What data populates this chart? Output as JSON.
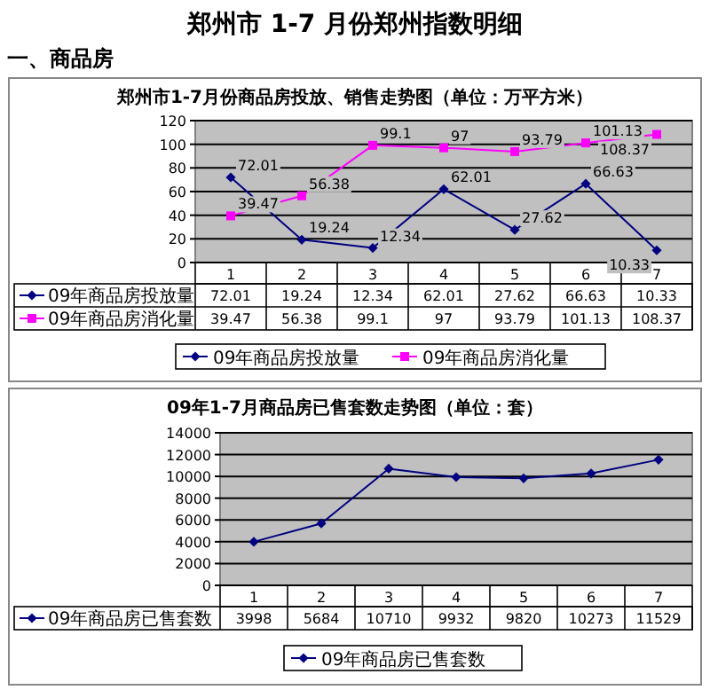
{
  "chart_data": [
    {
      "type": "line",
      "title": "郑州市1-7月份商品房投放、销售走势图（单位：万平方米）",
      "annotations": [
        "郑州市 1-7 月份郑州指数明细",
        "一、商品房",
        {
          "text": "72.01",
          "x": "1",
          "y": 72.01
        },
        {
          "text": "19.24",
          "x": "2",
          "y": 19.24
        },
        {
          "text": "12.34",
          "x": "3",
          "y": 12.34
        },
        {
          "text": "62.01",
          "x": "4",
          "y": 62.01
        },
        {
          "text": "27.62",
          "x": "5",
          "y": 27.62
        },
        {
          "text": "66.63",
          "x": "6",
          "y": 66.63
        },
        {
          "text": "10.33",
          "x": "7",
          "y": 10.33
        },
        {
          "text": "39.47",
          "x": "1",
          "y": 39.47
        },
        {
          "text": "56.38",
          "x": "2",
          "y": 56.38
        },
        {
          "text": "99.1",
          "x": "3",
          "y": 99.1
        },
        {
          "text": "97",
          "x": "4",
          "y": 97
        },
        {
          "text": "93.79",
          "x": "5",
          "y": 93.79
        },
        {
          "text": "101.13",
          "x": "6",
          "y": 101.13
        },
        {
          "text": "108.37",
          "x": "7",
          "y": 108.37
        }
      ],
      "categories": [
        "1",
        "2",
        "3",
        "4",
        "5",
        "6",
        "7"
      ],
      "ylim": [
        0,
        120
      ],
      "yticks": [
        0,
        20,
        40,
        60,
        80,
        100,
        120
      ],
      "grid": "y",
      "legend": "bottom",
      "data_labels": true,
      "series": [
        {
          "name": "09年商品房投放量",
          "color": "#000080",
          "marker": "diamond",
          "values": [
            72.01,
            19.24,
            12.34,
            62.01,
            27.62,
            66.63,
            10.33
          ]
        },
        {
          "name": "09年商品房消化量",
          "color": "#ff00ff",
          "marker": "square",
          "values": [
            39.47,
            56.38,
            99.1,
            97,
            93.79,
            101.13,
            108.37
          ]
        }
      ]
    },
    {
      "type": "line",
      "title": "09年1-7月商品房已售套数走势图（单位：套）",
      "categories": [
        "1",
        "2",
        "3",
        "4",
        "5",
        "6",
        "7"
      ],
      "ylim": [
        0,
        14000
      ],
      "yticks": [
        0,
        2000,
        4000,
        6000,
        8000,
        10000,
        12000,
        14000
      ],
      "grid": "y",
      "legend": "bottom",
      "data_labels": true,
      "series": [
        {
          "name": "09年商品房已售套数",
          "color": "#000080",
          "marker": "diamond",
          "values": [
            3998,
            5684,
            10710,
            9932,
            9820,
            10273,
            11529
          ]
        }
      ]
    }
  ]
}
